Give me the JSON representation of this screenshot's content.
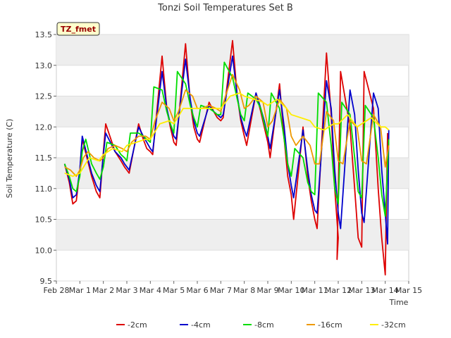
{
  "chart_data": {
    "type": "line",
    "title": "Tonzi Soil Temperatures Set B",
    "xlabel": "Time",
    "ylabel": "Soil Temperature (C)",
    "ylim": [
      9.5,
      13.5
    ],
    "xlim": [
      0,
      15
    ],
    "grid": "horizontal bands",
    "legend_position": "bottom",
    "tag": "TZ_fmet",
    "x_ticks": [
      {
        "x": 0,
        "label": "Feb 28"
      },
      {
        "x": 1,
        "label": "Mar 1"
      },
      {
        "x": 2,
        "label": "Mar 2"
      },
      {
        "x": 3,
        "label": "Mar 3"
      },
      {
        "x": 4,
        "label": "Mar 4"
      },
      {
        "x": 5,
        "label": "Mar 5"
      },
      {
        "x": 6,
        "label": "Mar 6"
      },
      {
        "x": 7,
        "label": "Mar 7"
      },
      {
        "x": 8,
        "label": "Mar 8"
      },
      {
        "x": 9,
        "label": "Mar 9"
      },
      {
        "x": 10,
        "label": "Mar 10"
      },
      {
        "x": 11,
        "label": "Mar 11"
      },
      {
        "x": 12,
        "label": "Mar 12"
      },
      {
        "x": 13,
        "label": "Mar 13"
      },
      {
        "x": 14,
        "label": "Mar 14"
      },
      {
        "x": 15,
        "label": "Mar 15"
      }
    ],
    "y_ticks": [
      9.5,
      10.0,
      10.5,
      11.0,
      11.5,
      12.0,
      12.5,
      13.0,
      13.5
    ],
    "series": [
      {
        "name": "-2cm",
        "color": "#dd0000",
        "x": [
          0.35,
          0.55,
          0.7,
          0.85,
          1.0,
          1.1,
          1.5,
          1.7,
          1.85,
          2.0,
          2.1,
          2.5,
          2.75,
          2.9,
          3.0,
          3.1,
          3.5,
          3.7,
          3.85,
          4.0,
          4.1,
          4.5,
          4.7,
          4.85,
          5.0,
          5.1,
          5.5,
          5.7,
          5.85,
          6.0,
          6.1,
          6.5,
          6.7,
          6.85,
          7.0,
          7.1,
          7.5,
          7.7,
          7.85,
          8.0,
          8.1,
          8.5,
          8.7,
          8.85,
          9.0,
          9.1,
          9.5,
          9.7,
          9.85,
          10.0,
          10.1,
          10.5,
          10.7,
          10.85,
          11.0,
          11.1,
          11.5,
          11.7,
          11.85,
          12.0,
          11.95,
          12.1,
          12.5,
          12.7,
          12.85,
          13.0,
          13.1,
          13.5,
          13.7,
          13.85,
          14.0,
          14.1
        ],
        "y": [
          11.4,
          11.1,
          10.75,
          10.8,
          11.3,
          11.8,
          11.2,
          10.95,
          10.85,
          11.6,
          12.05,
          11.6,
          11.45,
          11.35,
          11.3,
          11.25,
          12.05,
          11.8,
          11.65,
          11.6,
          11.55,
          13.15,
          12.3,
          12.0,
          11.75,
          11.7,
          13.35,
          12.4,
          12.0,
          11.8,
          11.75,
          12.4,
          12.25,
          12.15,
          12.1,
          12.15,
          13.4,
          12.5,
          12.1,
          11.85,
          11.7,
          12.55,
          12.25,
          12.0,
          11.75,
          11.5,
          12.7,
          11.8,
          11.2,
          10.9,
          10.5,
          12.0,
          11.2,
          10.8,
          10.5,
          10.35,
          13.2,
          12.2,
          11.0,
          10.2,
          9.85,
          12.9,
          12.0,
          11.0,
          10.2,
          10.05,
          12.9,
          12.3,
          11.0,
          10.2,
          9.6,
          11.9
        ],
        "note": "-2cm"
      },
      {
        "name": "-4cm",
        "color": "#0000cc",
        "x": [
          0.35,
          0.55,
          0.7,
          0.85,
          1.0,
          1.1,
          1.5,
          1.7,
          1.85,
          2.0,
          2.1,
          2.5,
          2.75,
          2.9,
          3.0,
          3.1,
          3.5,
          3.7,
          3.85,
          4.0,
          4.1,
          4.5,
          4.7,
          4.85,
          5.0,
          5.1,
          5.5,
          5.7,
          5.85,
          6.0,
          6.1,
          6.5,
          6.7,
          6.85,
          7.0,
          7.1,
          7.5,
          7.7,
          7.85,
          8.0,
          8.1,
          8.5,
          8.7,
          8.85,
          9.0,
          9.1,
          9.5,
          9.7,
          9.85,
          10.0,
          10.1,
          10.5,
          10.7,
          10.85,
          11.0,
          11.1,
          11.5,
          11.7,
          11.85,
          12.0,
          12.1,
          12.5,
          12.7,
          12.85,
          13.0,
          13.1,
          13.5,
          13.7,
          13.85,
          14.0,
          14.1,
          14.15
        ],
        "y": [
          11.4,
          11.15,
          10.85,
          10.9,
          11.3,
          11.85,
          11.25,
          11.05,
          10.95,
          11.55,
          11.9,
          11.6,
          11.5,
          11.4,
          11.35,
          11.3,
          12.0,
          11.85,
          11.75,
          11.65,
          11.6,
          12.9,
          12.3,
          12.05,
          11.85,
          11.8,
          13.1,
          12.45,
          12.1,
          11.9,
          11.85,
          12.35,
          12.25,
          12.2,
          12.15,
          12.2,
          13.15,
          12.5,
          12.15,
          11.95,
          11.85,
          12.55,
          12.3,
          12.1,
          11.85,
          11.65,
          12.6,
          12.0,
          11.4,
          11.05,
          10.85,
          11.95,
          11.3,
          10.9,
          10.65,
          10.6,
          12.75,
          12.3,
          11.3,
          10.6,
          10.35,
          12.6,
          12.2,
          11.3,
          10.6,
          10.45,
          12.55,
          12.3,
          11.3,
          10.6,
          10.1,
          11.95
        ]
      },
      {
        "name": "-8cm",
        "color": "#00dd00",
        "x": [
          0.35,
          0.55,
          0.7,
          0.85,
          1.0,
          1.1,
          1.25,
          1.5,
          1.7,
          1.85,
          2.0,
          2.15,
          2.5,
          2.75,
          2.9,
          3.0,
          3.15,
          3.5,
          3.7,
          3.85,
          4.0,
          4.15,
          4.5,
          4.7,
          4.85,
          5.0,
          5.15,
          5.5,
          5.7,
          5.85,
          6.0,
          6.15,
          6.5,
          6.7,
          6.85,
          7.0,
          7.15,
          7.5,
          7.7,
          7.85,
          8.0,
          8.15,
          8.5,
          8.7,
          8.85,
          9.0,
          9.15,
          9.5,
          9.7,
          9.85,
          10.0,
          10.15,
          10.5,
          10.7,
          10.85,
          11.0,
          11.15,
          11.5,
          11.7,
          11.85,
          12.0,
          12.15,
          12.5,
          12.7,
          12.85,
          13.0,
          13.15,
          13.5,
          13.7,
          13.85,
          14.0,
          14.15
        ],
        "y": [
          11.4,
          11.2,
          11.0,
          10.95,
          11.2,
          11.6,
          11.8,
          11.4,
          11.25,
          11.15,
          11.35,
          11.75,
          11.7,
          11.55,
          11.5,
          11.45,
          11.9,
          11.9,
          11.85,
          11.8,
          11.75,
          12.65,
          12.6,
          12.25,
          12.05,
          11.9,
          12.9,
          12.7,
          12.35,
          12.15,
          12.0,
          12.35,
          12.3,
          12.25,
          12.2,
          12.2,
          13.05,
          12.8,
          12.45,
          12.2,
          12.1,
          12.55,
          12.45,
          12.3,
          12.05,
          11.85,
          12.55,
          12.3,
          11.8,
          11.4,
          11.2,
          11.65,
          11.5,
          11.1,
          10.95,
          10.9,
          12.55,
          12.4,
          11.7,
          11.0,
          10.75,
          12.4,
          12.2,
          11.5,
          10.95,
          10.85,
          12.35,
          12.15,
          11.5,
          10.9,
          10.55,
          11.8
        ]
      },
      {
        "name": "-16cm",
        "color": "#ee9900",
        "x": [
          0.35,
          0.6,
          0.85,
          1.0,
          1.15,
          1.35,
          1.6,
          1.85,
          2.0,
          2.2,
          2.5,
          2.8,
          3.0,
          3.2,
          3.5,
          3.8,
          4.0,
          4.2,
          4.5,
          4.8,
          5.0,
          5.2,
          5.5,
          5.8,
          6.0,
          6.2,
          6.5,
          6.8,
          7.0,
          7.2,
          7.5,
          7.8,
          8.0,
          8.2,
          8.5,
          8.8,
          9.0,
          9.2,
          9.5,
          9.8,
          10.0,
          10.2,
          10.5,
          10.8,
          11.0,
          11.2,
          11.5,
          11.8,
          12.0,
          12.2,
          12.5,
          12.8,
          13.0,
          13.2,
          13.5,
          13.8,
          14.0,
          14.15
        ],
        "y": [
          11.35,
          11.3,
          11.2,
          11.3,
          11.5,
          11.6,
          11.5,
          11.45,
          11.5,
          11.65,
          11.7,
          11.65,
          11.6,
          11.75,
          11.85,
          11.85,
          11.8,
          12.1,
          12.4,
          12.3,
          12.1,
          12.25,
          12.6,
          12.5,
          12.3,
          12.3,
          12.35,
          12.3,
          12.25,
          12.5,
          12.85,
          12.6,
          12.3,
          12.35,
          12.5,
          12.4,
          12.0,
          12.1,
          12.45,
          12.3,
          11.85,
          11.7,
          11.85,
          11.7,
          11.4,
          11.4,
          12.25,
          12.1,
          11.45,
          11.4,
          12.1,
          12.0,
          11.45,
          11.4,
          12.2,
          12.0,
          11.35,
          11.7
        ]
      },
      {
        "name": "-32cm",
        "color": "#ffee00",
        "x": [
          0.35,
          0.7,
          1.0,
          1.4,
          1.8,
          2.0,
          2.4,
          2.8,
          3.0,
          3.4,
          3.8,
          4.0,
          4.4,
          4.8,
          5.0,
          5.4,
          5.8,
          6.0,
          6.4,
          6.8,
          7.0,
          7.4,
          7.8,
          8.0,
          8.4,
          8.8,
          9.0,
          9.4,
          9.8,
          10.0,
          10.4,
          10.8,
          11.0,
          11.4,
          11.8,
          12.0,
          12.4,
          12.8,
          13.0,
          13.4,
          13.8,
          14.0,
          14.15
        ],
        "y": [
          11.25,
          11.2,
          11.25,
          11.5,
          11.45,
          11.55,
          11.65,
          11.6,
          11.7,
          11.75,
          11.8,
          11.8,
          12.05,
          12.1,
          12.05,
          12.3,
          12.3,
          12.3,
          12.3,
          12.3,
          12.3,
          12.5,
          12.55,
          12.5,
          12.45,
          12.4,
          12.35,
          12.45,
          12.3,
          12.2,
          12.15,
          12.1,
          12.0,
          11.95,
          12.05,
          12.05,
          12.2,
          12.0,
          12.05,
          12.15,
          12.0,
          12.0,
          11.95
        ]
      }
    ]
  }
}
